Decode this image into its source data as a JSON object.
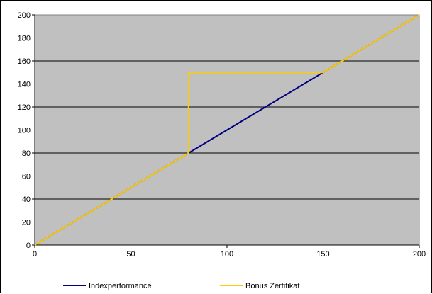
{
  "chart_data": {
    "type": "line",
    "title": "",
    "xlabel": "",
    "ylabel": "",
    "xlim": [
      0,
      200
    ],
    "ylim": [
      0,
      200
    ],
    "x_ticks": [
      0,
      50,
      100,
      150,
      200
    ],
    "y_ticks": [
      0,
      20,
      40,
      60,
      80,
      100,
      120,
      140,
      160,
      180,
      200
    ],
    "grid": "horizontal",
    "legend_position": "bottom",
    "plot_background": "#c0c0c0",
    "series": [
      {
        "name": "Indexperformance",
        "color": "#000080",
        "x": [
          0,
          80,
          150,
          200
        ],
        "y": [
          0,
          80,
          150,
          200
        ]
      },
      {
        "name": "Bonus Zertifikat",
        "color": "#ffcc00",
        "x": [
          0,
          80,
          80,
          150,
          200
        ],
        "y": [
          0,
          80,
          150,
          150,
          200
        ]
      }
    ]
  }
}
